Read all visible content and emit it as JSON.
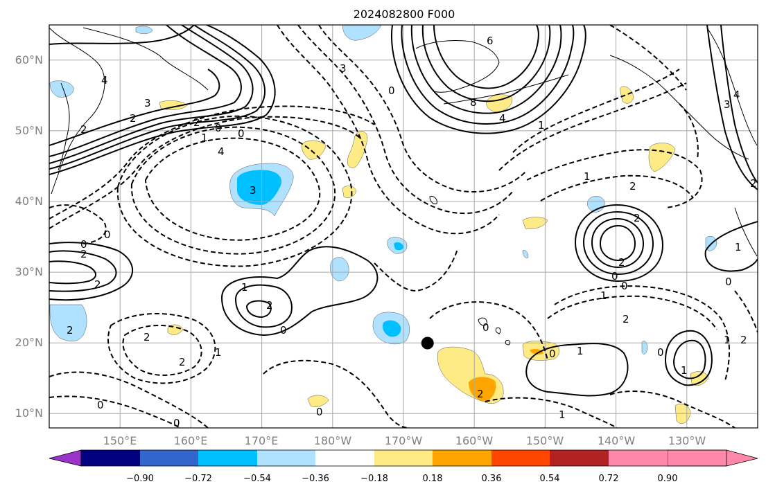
{
  "title": "2024082800 F000",
  "map": {
    "lat_labels": [
      "60°N",
      "50°N",
      "40°N",
      "30°N",
      "20°N",
      "10°N"
    ],
    "lon_labels": [
      "150°E",
      "160°E",
      "170°E",
      "180°W",
      "170°W",
      "160°W",
      "150°W",
      "140°W",
      "130°W"
    ],
    "extent": {
      "lon_min": 140,
      "lon_max": 240,
      "lat_min": 8,
      "lat_max": 65
    },
    "marker": {
      "lon": 193.4,
      "lat": 20,
      "color": "#000000"
    }
  },
  "colorbar": {
    "ticks": [
      "−0.90",
      "−0.72",
      "−0.54",
      "−0.36",
      "−0.18",
      "0.18",
      "0.36",
      "0.54",
      "0.72",
      "0.90"
    ],
    "colors": [
      "#9933cc",
      "#000080",
      "#3366cc",
      "#00bfff",
      "#b0e2ff",
      "#ffffff",
      "#ffeb85",
      "#ffa500",
      "#ff4500",
      "#b22222",
      "#ff88aa"
    ]
  },
  "contour_labels": [
    {
      "id": "c1",
      "text": "4"
    },
    {
      "id": "c2",
      "text": "3"
    },
    {
      "id": "c3",
      "text": "2"
    },
    {
      "id": "c4",
      "text": "2"
    },
    {
      "id": "c5",
      "text": "2"
    },
    {
      "id": "c6",
      "text": "0"
    },
    {
      "id": "c7",
      "text": "0"
    },
    {
      "id": "c8",
      "text": "1"
    },
    {
      "id": "c9",
      "text": "4"
    },
    {
      "id": "c10",
      "text": "3"
    },
    {
      "id": "c11",
      "text": "0"
    },
    {
      "id": "c12",
      "text": "0"
    },
    {
      "id": "c13",
      "text": "2"
    },
    {
      "id": "c14",
      "text": "2"
    },
    {
      "id": "c15",
      "text": "1"
    },
    {
      "id": "c16",
      "text": "2"
    },
    {
      "id": "c17",
      "text": "0"
    },
    {
      "id": "c18",
      "text": "2"
    },
    {
      "id": "c19",
      "text": "2"
    },
    {
      "id": "c20",
      "text": "0"
    },
    {
      "id": "c21",
      "text": "0"
    },
    {
      "id": "c22",
      "text": "6"
    },
    {
      "id": "c23",
      "text": "8"
    },
    {
      "id": "c24",
      "text": "4"
    },
    {
      "id": "c25",
      "text": "3"
    },
    {
      "id": "c26",
      "text": "0"
    },
    {
      "id": "c27",
      "text": "1"
    },
    {
      "id": "c28",
      "text": "2"
    },
    {
      "id": "c29",
      "text": "2"
    },
    {
      "id": "c30",
      "text": "0"
    },
    {
      "id": "c31",
      "text": "0"
    },
    {
      "id": "c32",
      "text": "1"
    },
    {
      "id": "c33",
      "text": "1"
    },
    {
      "id": "c34",
      "text": "2"
    },
    {
      "id": "c35",
      "text": "0"
    },
    {
      "id": "c36",
      "text": "1"
    },
    {
      "id": "c37",
      "text": "2"
    },
    {
      "id": "c38",
      "text": "1"
    },
    {
      "id": "c39",
      "text": "0"
    },
    {
      "id": "c40",
      "text": "1"
    },
    {
      "id": "c41",
      "text": "2"
    },
    {
      "id": "c42",
      "text": "3"
    },
    {
      "id": "c43",
      "text": "4"
    },
    {
      "id": "c44",
      "text": "1"
    },
    {
      "id": "c45",
      "text": "0"
    },
    {
      "id": "c46",
      "text": "2"
    },
    {
      "id": "c47",
      "text": "0"
    },
    {
      "id": "c48",
      "text": "0"
    },
    {
      "id": "c49",
      "text": "1"
    },
    {
      "id": "c50",
      "text": "1"
    },
    {
      "id": "c51",
      "text": "2"
    },
    {
      "id": "c52",
      "text": "2"
    }
  ]
}
